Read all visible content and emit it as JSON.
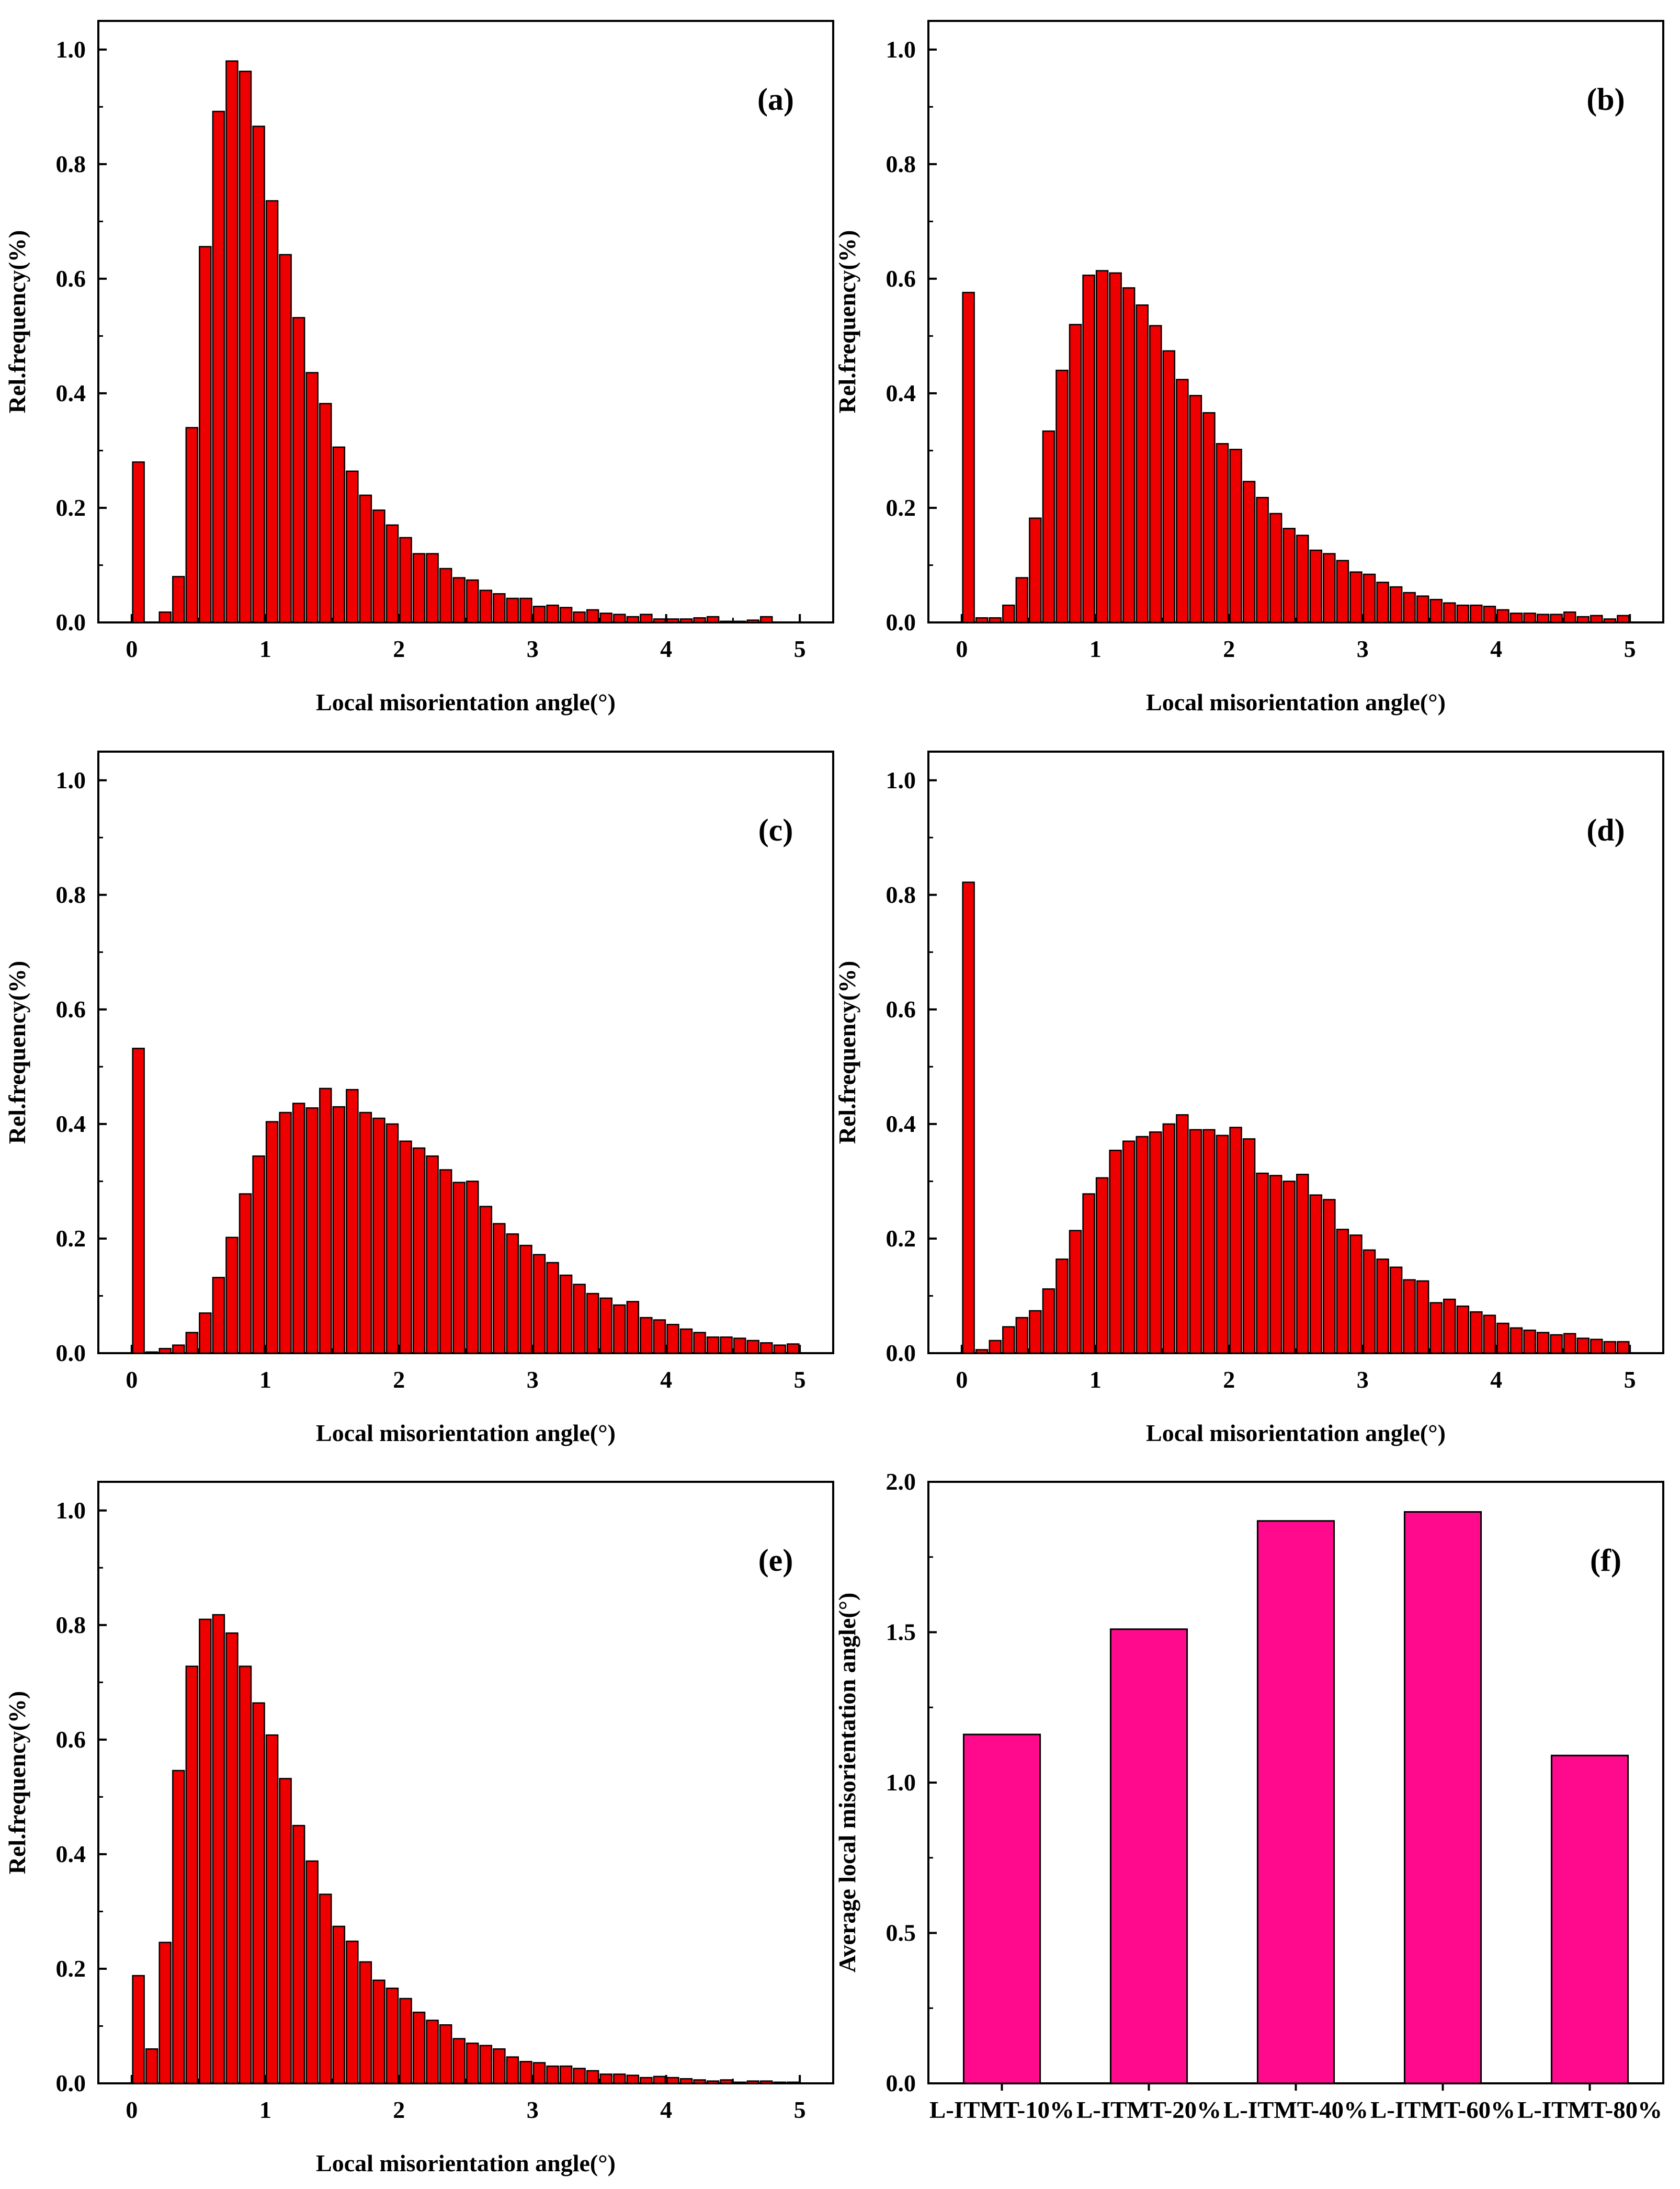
{
  "colors": {
    "histogram_bar": "#ee0000",
    "average_bar": "#ff0a8c",
    "bar_stroke": "#000000",
    "axis": "#000000"
  },
  "chart_data": [
    {
      "panel": "(a)",
      "type": "bar",
      "xlabel": "Local misorientation angle(°)",
      "ylabel": "Rel.frequency(%)",
      "xlim": [
        -0.25,
        5.25
      ],
      "ylim": [
        0,
        1.05
      ],
      "xticks": [
        "0",
        "1",
        "2",
        "3",
        "4",
        "5"
      ],
      "yticks": [
        "0.0",
        "0.2",
        "0.4",
        "0.6",
        "0.8",
        "1.0"
      ],
      "x": [
        0.05,
        0.15,
        0.25,
        0.35,
        0.45,
        0.55,
        0.65,
        0.75,
        0.85,
        0.95,
        1.05,
        1.15,
        1.25,
        1.35,
        1.45,
        1.55,
        1.65,
        1.75,
        1.85,
        1.95,
        2.05,
        2.15,
        2.25,
        2.35,
        2.45,
        2.55,
        2.65,
        2.75,
        2.85,
        2.95,
        3.05,
        3.15,
        3.25,
        3.35,
        3.45,
        3.55,
        3.65,
        3.75,
        3.85,
        3.95,
        4.05,
        4.15,
        4.25,
        4.35,
        4.45,
        4.55,
        4.65,
        4.75,
        4.85,
        4.95
      ],
      "values": [
        0.28,
        0.0,
        0.018,
        0.08,
        0.34,
        0.656,
        0.892,
        0.98,
        0.962,
        0.866,
        0.736,
        0.642,
        0.532,
        0.436,
        0.382,
        0.306,
        0.264,
        0.222,
        0.196,
        0.17,
        0.148,
        0.12,
        0.12,
        0.094,
        0.078,
        0.074,
        0.056,
        0.05,
        0.042,
        0.042,
        0.028,
        0.03,
        0.026,
        0.018,
        0.022,
        0.016,
        0.014,
        0.01,
        0.014,
        0.006,
        0.006,
        0.006,
        0.008,
        0.01,
        0.002,
        0.002,
        0.004,
        0.01,
        0.0,
        0.0
      ]
    },
    {
      "panel": "(b)",
      "type": "bar",
      "xlabel": "Local misorientation angle(°)",
      "ylabel": "Rel.frequency(%)",
      "xlim": [
        -0.25,
        5.25
      ],
      "ylim": [
        0,
        1.05
      ],
      "xticks": [
        "0",
        "1",
        "2",
        "3",
        "4",
        "5"
      ],
      "yticks": [
        "0.0",
        "0.2",
        "0.4",
        "0.6",
        "0.8",
        "1.0"
      ],
      "x": [
        0.05,
        0.15,
        0.25,
        0.35,
        0.45,
        0.55,
        0.65,
        0.75,
        0.85,
        0.95,
        1.05,
        1.15,
        1.25,
        1.35,
        1.45,
        1.55,
        1.65,
        1.75,
        1.85,
        1.95,
        2.05,
        2.15,
        2.25,
        2.35,
        2.45,
        2.55,
        2.65,
        2.75,
        2.85,
        2.95,
        3.05,
        3.15,
        3.25,
        3.35,
        3.45,
        3.55,
        3.65,
        3.75,
        3.85,
        3.95,
        4.05,
        4.15,
        4.25,
        4.35,
        4.45,
        4.55,
        4.65,
        4.75,
        4.85,
        4.95
      ],
      "values": [
        0.576,
        0.008,
        0.008,
        0.03,
        0.078,
        0.182,
        0.334,
        0.44,
        0.52,
        0.606,
        0.614,
        0.61,
        0.584,
        0.554,
        0.518,
        0.474,
        0.424,
        0.396,
        0.366,
        0.312,
        0.302,
        0.246,
        0.218,
        0.19,
        0.164,
        0.152,
        0.126,
        0.12,
        0.108,
        0.088,
        0.084,
        0.07,
        0.062,
        0.052,
        0.046,
        0.04,
        0.034,
        0.03,
        0.03,
        0.028,
        0.022,
        0.016,
        0.016,
        0.014,
        0.014,
        0.018,
        0.01,
        0.012,
        0.006,
        0.012
      ]
    },
    {
      "panel": "(c)",
      "type": "bar",
      "xlabel": "Local misorientation angle(°)",
      "ylabel": "Rel.frequency(%)",
      "xlim": [
        -0.25,
        5.25
      ],
      "ylim": [
        0,
        1.05
      ],
      "xticks": [
        "0",
        "1",
        "2",
        "3",
        "4",
        "5"
      ],
      "yticks": [
        "0.0",
        "0.2",
        "0.4",
        "0.6",
        "0.8",
        "1.0"
      ],
      "x": [
        0.05,
        0.15,
        0.25,
        0.35,
        0.45,
        0.55,
        0.65,
        0.75,
        0.85,
        0.95,
        1.05,
        1.15,
        1.25,
        1.35,
        1.45,
        1.55,
        1.65,
        1.75,
        1.85,
        1.95,
        2.05,
        2.15,
        2.25,
        2.35,
        2.45,
        2.55,
        2.65,
        2.75,
        2.85,
        2.95,
        3.05,
        3.15,
        3.25,
        3.35,
        3.45,
        3.55,
        3.65,
        3.75,
        3.85,
        3.95,
        4.05,
        4.15,
        4.25,
        4.35,
        4.45,
        4.55,
        4.65,
        4.75,
        4.85,
        4.95
      ],
      "values": [
        0.532,
        0.002,
        0.008,
        0.014,
        0.036,
        0.07,
        0.132,
        0.202,
        0.278,
        0.344,
        0.404,
        0.42,
        0.436,
        0.428,
        0.462,
        0.43,
        0.46,
        0.42,
        0.41,
        0.4,
        0.37,
        0.358,
        0.344,
        0.32,
        0.298,
        0.3,
        0.256,
        0.226,
        0.208,
        0.188,
        0.172,
        0.158,
        0.136,
        0.12,
        0.104,
        0.096,
        0.084,
        0.09,
        0.062,
        0.058,
        0.05,
        0.042,
        0.036,
        0.028,
        0.028,
        0.026,
        0.022,
        0.018,
        0.014,
        0.016
      ]
    },
    {
      "panel": "(d)",
      "type": "bar",
      "xlabel": "Local misorientation angle(°)",
      "ylabel": "Rel.frequency(%)",
      "xlim": [
        -0.25,
        5.25
      ],
      "ylim": [
        0,
        1.05
      ],
      "xticks": [
        "0",
        "1",
        "2",
        "3",
        "4",
        "5"
      ],
      "yticks": [
        "0.0",
        "0.2",
        "0.4",
        "0.6",
        "0.8",
        "1.0"
      ],
      "x": [
        0.05,
        0.15,
        0.25,
        0.35,
        0.45,
        0.55,
        0.65,
        0.75,
        0.85,
        0.95,
        1.05,
        1.15,
        1.25,
        1.35,
        1.45,
        1.55,
        1.65,
        1.75,
        1.85,
        1.95,
        2.05,
        2.15,
        2.25,
        2.35,
        2.45,
        2.55,
        2.65,
        2.75,
        2.85,
        2.95,
        3.05,
        3.15,
        3.25,
        3.35,
        3.45,
        3.55,
        3.65,
        3.75,
        3.85,
        3.95,
        4.05,
        4.15,
        4.25,
        4.35,
        4.45,
        4.55,
        4.65,
        4.75,
        4.85,
        4.95
      ],
      "values": [
        0.822,
        0.006,
        0.022,
        0.046,
        0.062,
        0.074,
        0.112,
        0.164,
        0.214,
        0.278,
        0.306,
        0.354,
        0.37,
        0.378,
        0.386,
        0.4,
        0.416,
        0.39,
        0.39,
        0.38,
        0.394,
        0.374,
        0.314,
        0.31,
        0.3,
        0.312,
        0.276,
        0.268,
        0.216,
        0.206,
        0.18,
        0.164,
        0.15,
        0.128,
        0.126,
        0.088,
        0.094,
        0.082,
        0.072,
        0.066,
        0.052,
        0.044,
        0.04,
        0.036,
        0.032,
        0.034,
        0.026,
        0.024,
        0.02,
        0.02
      ]
    },
    {
      "panel": "(e)",
      "type": "bar",
      "xlabel": "Local misorientation angle(°)",
      "ylabel": "Rel.frequency(%)",
      "xlim": [
        -0.25,
        5.25
      ],
      "ylim": [
        0,
        1.05
      ],
      "xticks": [
        "0",
        "1",
        "2",
        "3",
        "4",
        "5"
      ],
      "yticks": [
        "0.0",
        "0.2",
        "0.4",
        "0.6",
        "0.8",
        "1.0"
      ],
      "x": [
        0.05,
        0.15,
        0.25,
        0.35,
        0.45,
        0.55,
        0.65,
        0.75,
        0.85,
        0.95,
        1.05,
        1.15,
        1.25,
        1.35,
        1.45,
        1.55,
        1.65,
        1.75,
        1.85,
        1.95,
        2.05,
        2.15,
        2.25,
        2.35,
        2.45,
        2.55,
        2.65,
        2.75,
        2.85,
        2.95,
        3.05,
        3.15,
        3.25,
        3.35,
        3.45,
        3.55,
        3.65,
        3.75,
        3.85,
        3.95,
        4.05,
        4.15,
        4.25,
        4.35,
        4.45,
        4.55,
        4.65,
        4.75,
        4.85,
        4.95
      ],
      "values": [
        0.188,
        0.06,
        0.246,
        0.546,
        0.728,
        0.81,
        0.818,
        0.786,
        0.728,
        0.664,
        0.608,
        0.532,
        0.45,
        0.388,
        0.33,
        0.274,
        0.248,
        0.212,
        0.18,
        0.166,
        0.148,
        0.124,
        0.11,
        0.102,
        0.078,
        0.07,
        0.066,
        0.06,
        0.046,
        0.038,
        0.036,
        0.03,
        0.03,
        0.026,
        0.022,
        0.016,
        0.016,
        0.014,
        0.01,
        0.012,
        0.01,
        0.008,
        0.006,
        0.004,
        0.006,
        0.002,
        0.004,
        0.004,
        0.002,
        0.002
      ]
    },
    {
      "panel": "(f)",
      "type": "bar",
      "xlabel": "",
      "ylabel": "Average local misorientation angle(°)",
      "categories": [
        "L-ITMT-10%",
        "L-ITMT-20%",
        "L-ITMT-40%",
        "L-ITMT-60%",
        "L-ITMT-80%"
      ],
      "values": [
        1.16,
        1.51,
        1.87,
        1.9,
        1.09
      ],
      "ylim": [
        0,
        2.0
      ],
      "yticks": [
        "0.0",
        "0.5",
        "1.0",
        "1.5",
        "2.0"
      ]
    }
  ]
}
